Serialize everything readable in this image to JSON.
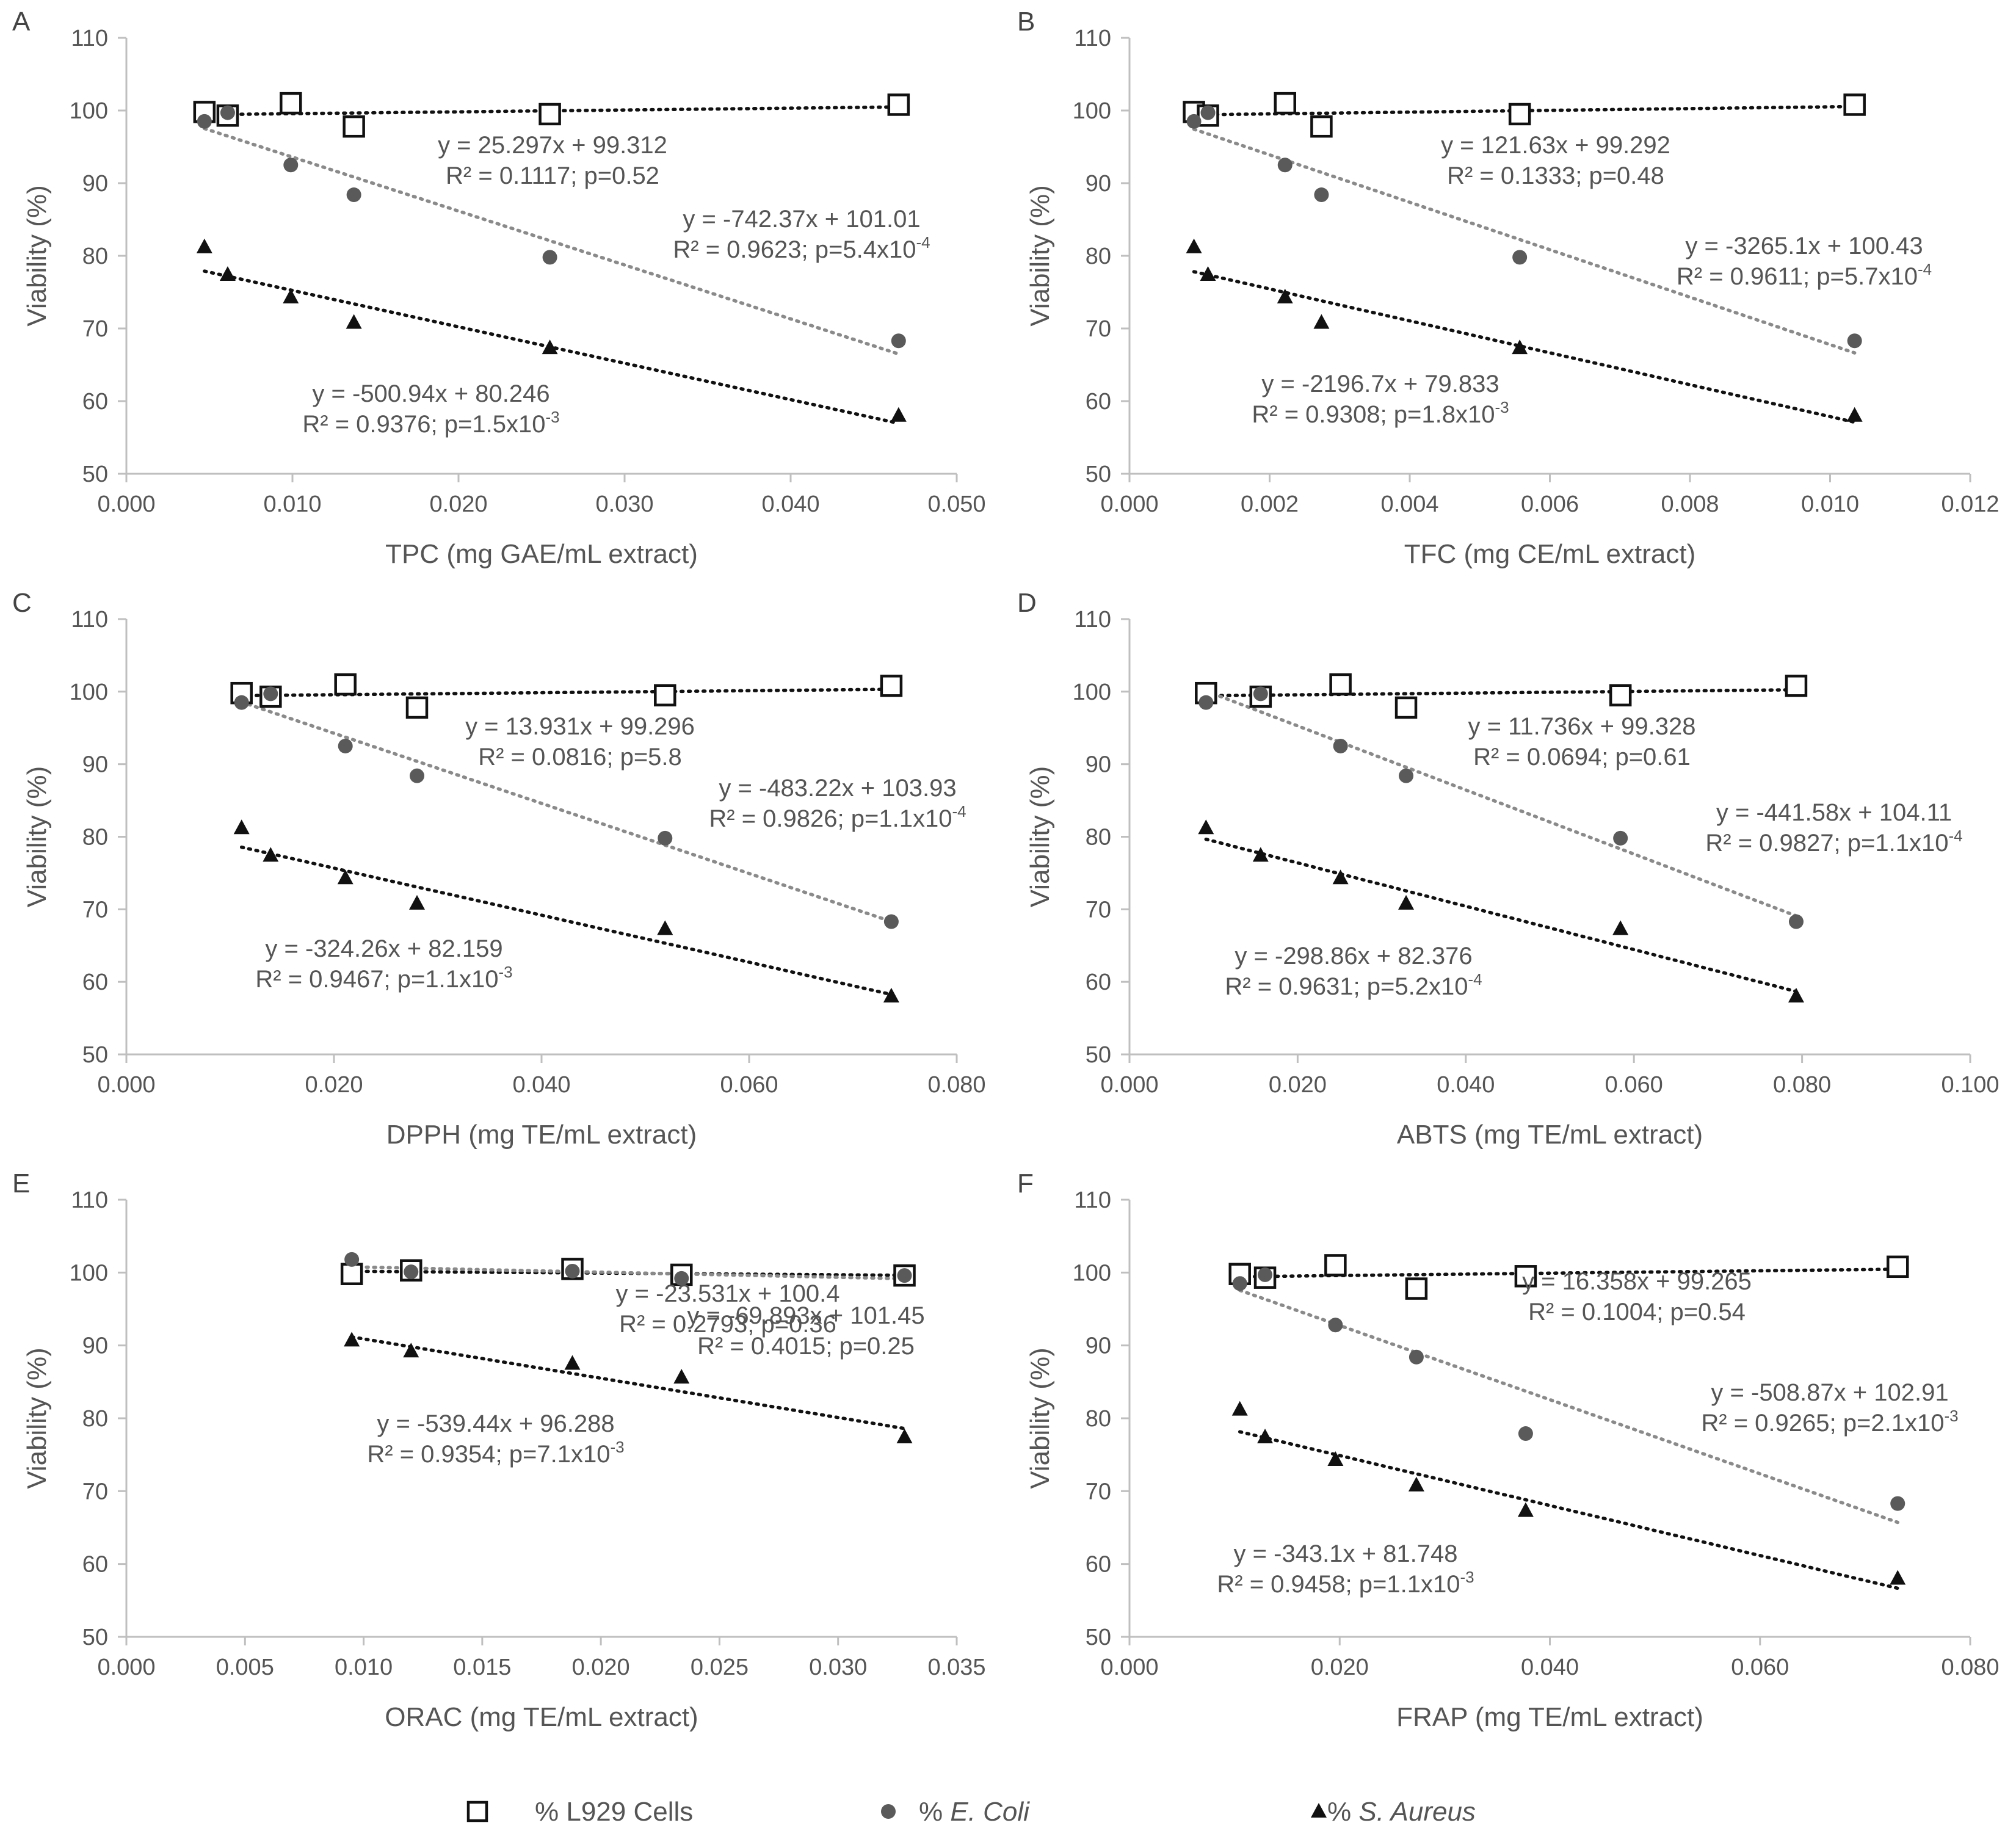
{
  "legend": [
    {
      "key": "l929",
      "label": "% L929 Cells",
      "prefix": "",
      "italic": ""
    },
    {
      "key": "ecoli",
      "label": "% E. Coli",
      "prefix": "% ",
      "italic": "E. Coli"
    },
    {
      "key": "saureus",
      "label": "% S. Aureus",
      "prefix": "% ",
      "italic": "S. Aureus"
    }
  ],
  "colors": {
    "l929": "#111111",
    "ecoli": "#5a5a5a",
    "saureus": "#111111",
    "ecoli_trend": "#8a8a8a",
    "axis": "#bfbfbf",
    "text": "#555555"
  },
  "chart_data": [
    {
      "letter": "A",
      "type": "scatter",
      "xlabel": "TPC (mg GAE/mL extract)",
      "ylabel": "Viability (%)",
      "xlim": [
        0,
        0.05
      ],
      "xstep": 0.01,
      "xdecimals": 3,
      "ylim": [
        50,
        110
      ],
      "ystep": 10,
      "series": [
        {
          "name": "% L929 Cells",
          "x": [
            0.0047,
            0.0061,
            0.0099,
            0.0137,
            0.0255,
            0.0465
          ],
          "y": [
            99.8,
            99.3,
            101.0,
            97.8,
            99.5,
            100.8
          ],
          "fit": {
            "slope": 25.297,
            "intercept": 99.312,
            "x0": 0.0047,
            "x1": 0.0465
          },
          "eq": "y = 25.297x + 99.312",
          "r2": "R² = 0.1117; p=0.52",
          "exp": ""
        },
        {
          "name": "% E. Coli",
          "x": [
            0.0047,
            0.0061,
            0.0099,
            0.0137,
            0.0255,
            0.0465
          ],
          "y": [
            98.5,
            99.7,
            92.5,
            88.4,
            79.8,
            68.3
          ],
          "fit": {
            "slope": -742.37,
            "intercept": 101.01,
            "x0": 0.0047,
            "x1": 0.0465
          },
          "eq": "y = -742.37x + 101.01",
          "r2": "R² = 0.9623; p=5.4x10",
          "exp": "-4"
        },
        {
          "name": "% S. Aureus",
          "x": [
            0.0047,
            0.0061,
            0.0099,
            0.0137,
            0.0255,
            0.0465
          ],
          "y": [
            81.2,
            77.4,
            74.3,
            70.8,
            67.3,
            58.0
          ],
          "fit": {
            "slope": -500.94,
            "intercept": 80.246,
            "x0": 0.0047,
            "x1": 0.0465
          },
          "eq": "y = -500.94x + 80.246",
          "r2": "R² = 0.9376; p=1.5x10",
          "exp": "-3"
        }
      ]
    },
    {
      "letter": "B",
      "type": "scatter",
      "xlabel": "TFC (mg CE/mL extract)",
      "ylabel": "Viability (%)",
      "xlim": [
        0,
        0.012
      ],
      "xstep": 0.002,
      "xdecimals": 3,
      "ylim": [
        50,
        110
      ],
      "ystep": 10,
      "series": [
        {
          "name": "% L929 Cells",
          "x": [
            0.00092,
            0.00112,
            0.00222,
            0.00274,
            0.00557,
            0.01035
          ],
          "y": [
            99.8,
            99.3,
            101.0,
            97.8,
            99.5,
            100.8
          ],
          "fit": {
            "slope": 121.63,
            "intercept": 99.292,
            "x0": 0.00092,
            "x1": 0.01035
          },
          "eq": "y = 121.63x + 99.292",
          "r2": "R² = 0.1333; p=0.48",
          "exp": ""
        },
        {
          "name": "% E. Coli",
          "x": [
            0.00092,
            0.00112,
            0.00222,
            0.00274,
            0.00557,
            0.01035
          ],
          "y": [
            98.5,
            99.7,
            92.5,
            88.4,
            79.8,
            68.3
          ],
          "fit": {
            "slope": -3265.1,
            "intercept": 100.43,
            "x0": 0.00092,
            "x1": 0.01035
          },
          "eq": "y = -3265.1x + 100.43",
          "r2": "R² = 0.9611; p=5.7x10",
          "exp": "-4"
        },
        {
          "name": "% S. Aureus",
          "x": [
            0.00092,
            0.00112,
            0.00222,
            0.00274,
            0.00557,
            0.01035
          ],
          "y": [
            81.2,
            77.4,
            74.3,
            70.8,
            67.3,
            58.0
          ],
          "fit": {
            "slope": -2196.7,
            "intercept": 79.833,
            "x0": 0.00092,
            "x1": 0.01035
          },
          "eq": "y = -2196.7x + 79.833",
          "r2": "R² = 0.9308; p=1.8x10",
          "exp": "-3"
        }
      ]
    },
    {
      "letter": "C",
      "type": "scatter",
      "xlabel": "DPPH (mg TE/mL extract)",
      "ylabel": "Viability (%)",
      "xlim": [
        0,
        0.08
      ],
      "xstep": 0.02,
      "xdecimals": 3,
      "ylim": [
        50,
        110
      ],
      "ystep": 10,
      "series": [
        {
          "name": "% L929 Cells",
          "x": [
            0.0111,
            0.0139,
            0.0211,
            0.028,
            0.0519,
            0.0737
          ],
          "y": [
            99.8,
            99.3,
            101.0,
            97.8,
            99.5,
            100.8
          ],
          "fit": {
            "slope": 13.931,
            "intercept": 99.296,
            "x0": 0.0111,
            "x1": 0.0737
          },
          "eq": "y = 13.931x + 99.296",
          "r2": "R² = 0.0816; p=5.8",
          "exp": ""
        },
        {
          "name": "% E. Coli",
          "x": [
            0.0111,
            0.0139,
            0.0211,
            0.028,
            0.0519,
            0.0737
          ],
          "y": [
            98.5,
            99.7,
            92.5,
            88.4,
            79.8,
            68.3
          ],
          "fit": {
            "slope": -483.22,
            "intercept": 103.93,
            "x0": 0.0111,
            "x1": 0.0737
          },
          "eq": "y = -483.22x + 103.93",
          "r2": "R² = 0.9826; p=1.1x10",
          "exp": "-4"
        },
        {
          "name": "% S. Aureus",
          "x": [
            0.0111,
            0.0139,
            0.0211,
            0.028,
            0.0519,
            0.0737
          ],
          "y": [
            81.2,
            77.4,
            74.3,
            70.8,
            67.3,
            58.0
          ],
          "fit": {
            "slope": -324.26,
            "intercept": 82.159,
            "x0": 0.0111,
            "x1": 0.0737
          },
          "eq": "y = -324.26x + 82.159",
          "r2": "R² = 0.9467; p=1.1x10",
          "exp": "-3"
        }
      ]
    },
    {
      "letter": "D",
      "type": "scatter",
      "xlabel": "ABTS (mg TE/mL extract)",
      "ylabel": "Viability (%)",
      "xlim": [
        0,
        0.1
      ],
      "xstep": 0.02,
      "xdecimals": 3,
      "ylim": [
        50,
        110
      ],
      "ystep": 10,
      "series": [
        {
          "name": "% L929 Cells",
          "x": [
            0.0091,
            0.0156,
            0.0251,
            0.0329,
            0.0584,
            0.0793
          ],
          "y": [
            99.8,
            99.3,
            101.0,
            97.8,
            99.5,
            100.8
          ],
          "fit": {
            "slope": 11.736,
            "intercept": 99.328,
            "x0": 0.0091,
            "x1": 0.0793
          },
          "eq": "y = 11.736x + 99.328",
          "r2": "R² = 0.0694; p=0.61",
          "exp": ""
        },
        {
          "name": "% E. Coli",
          "x": [
            0.0091,
            0.0156,
            0.0251,
            0.0329,
            0.0584,
            0.0793
          ],
          "y": [
            98.5,
            99.7,
            92.5,
            88.4,
            79.8,
            68.3
          ],
          "fit": {
            "slope": -441.58,
            "intercept": 104.11,
            "x0": 0.0091,
            "x1": 0.0793
          },
          "eq": "y = -441.58x + 104.11",
          "r2": "R² = 0.9827; p=1.1x10",
          "exp": "-4"
        },
        {
          "name": "% S. Aureus",
          "x": [
            0.0091,
            0.0156,
            0.0251,
            0.0329,
            0.0584,
            0.0793
          ],
          "y": [
            81.2,
            77.4,
            74.3,
            70.8,
            67.3,
            58.0
          ],
          "fit": {
            "slope": -298.86,
            "intercept": 82.376,
            "x0": 0.0091,
            "x1": 0.0793
          },
          "eq": "y = -298.86x + 82.376",
          "r2": "R² = 0.9631; p=5.2x10",
          "exp": "-4"
        }
      ]
    },
    {
      "letter": "E",
      "type": "scatter",
      "xlabel": "ORAC (mg TE/mL extract)",
      "ylabel": "Viability (%)",
      "xlim": [
        0,
        0.035
      ],
      "xstep": 0.005,
      "xdecimals": 3,
      "ylim": [
        50,
        110
      ],
      "ystep": 10,
      "series": [
        {
          "name": "% L929 Cells",
          "x": [
            0.0095,
            0.012,
            0.0188,
            0.0234,
            0.0328
          ],
          "y": [
            99.8,
            100.3,
            100.5,
            99.7,
            99.6
          ],
          "fit": {
            "slope": -23.531,
            "intercept": 100.4,
            "x0": 0.0095,
            "x1": 0.0328
          },
          "eq": "y = -23.531x + 100.4",
          "r2": "R² = 0.2793; p=0.36",
          "exp": ""
        },
        {
          "name": "% E. Coli",
          "x": [
            0.0095,
            0.012,
            0.0188,
            0.0234,
            0.0328
          ],
          "y": [
            101.8,
            100.1,
            100.2,
            99.2,
            99.6
          ],
          "fit": {
            "slope": -69.893,
            "intercept": 101.45,
            "x0": 0.0095,
            "x1": 0.0328
          },
          "eq": "y = -69.893x + 101.45",
          "r2": "R² = 0.4015; p=0.25",
          "exp": ""
        },
        {
          "name": "% S. Aureus",
          "x": [
            0.0095,
            0.012,
            0.0188,
            0.0234,
            0.0328
          ],
          "y": [
            90.7,
            89.2,
            87.5,
            85.6,
            77.4
          ],
          "fit": {
            "slope": -539.44,
            "intercept": 96.288,
            "x0": 0.0095,
            "x1": 0.0328
          },
          "eq": "y = -539.44x + 96.288",
          "r2": "R² = 0.9354; p=7.1x10",
          "exp": "-3"
        }
      ]
    },
    {
      "letter": "F",
      "type": "scatter",
      "xlabel": "FRAP (mg TE/mL extract)",
      "ylabel": "Viability (%)",
      "xlim": [
        0,
        0.08
      ],
      "xstep": 0.02,
      "xdecimals": 3,
      "ylim": [
        50,
        110
      ],
      "ystep": 10,
      "series": [
        {
          "name": "% L929 Cells",
          "x": [
            0.0105,
            0.0129,
            0.0196,
            0.0273,
            0.0377,
            0.0731
          ],
          "y": [
            99.8,
            99.3,
            101.0,
            97.8,
            99.5,
            100.8
          ],
          "fit": {
            "slope": 16.358,
            "intercept": 99.265,
            "x0": 0.0105,
            "x1": 0.0731
          },
          "eq": "y = 16.358x + 99.265",
          "r2": "R² = 0.1004; p=0.54",
          "exp": ""
        },
        {
          "name": "% E. Coli",
          "x": [
            0.0105,
            0.0129,
            0.0196,
            0.0273,
            0.0377,
            0.0731
          ],
          "y": [
            98.5,
            99.7,
            92.8,
            88.4,
            77.9,
            68.3
          ],
          "fit": {
            "slope": -508.87,
            "intercept": 102.91,
            "x0": 0.0105,
            "x1": 0.0731
          },
          "eq": "y = -508.87x + 102.91",
          "r2": "R² = 0.9265; p=2.1x10",
          "exp": "-3"
        },
        {
          "name": "% S. Aureus",
          "x": [
            0.0105,
            0.0129,
            0.0196,
            0.0273,
            0.0377,
            0.0731
          ],
          "y": [
            81.2,
            77.4,
            74.3,
            70.8,
            67.3,
            58.0
          ],
          "fit": {
            "slope": -343.1,
            "intercept": 81.748,
            "x0": 0.0105,
            "x1": 0.0731
          },
          "eq": "y = -343.1x + 81.748",
          "r2": "R² = 0.9458; p=1.1x10",
          "exp": "-3"
        }
      ]
    }
  ]
}
